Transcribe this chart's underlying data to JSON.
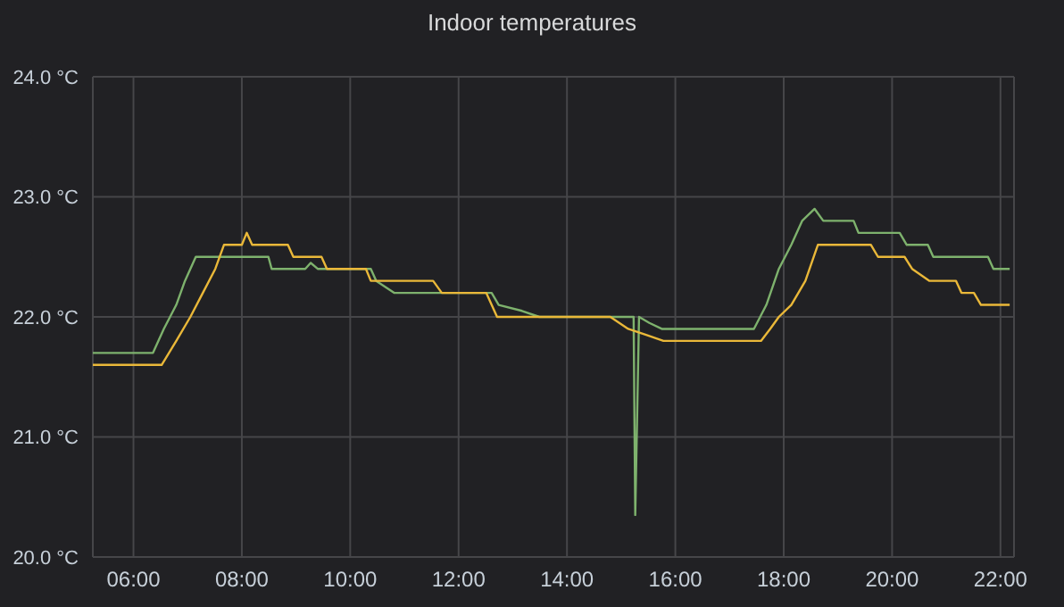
{
  "chart_data": {
    "type": "line",
    "title": "Indoor temperatures",
    "grid": true,
    "legend": false,
    "xlim": [
      5.25,
      22.25
    ],
    "xticks": [
      {
        "value": 6,
        "label": "06:00"
      },
      {
        "value": 8,
        "label": "08:00"
      },
      {
        "value": 10,
        "label": "10:00"
      },
      {
        "value": 12,
        "label": "12:00"
      },
      {
        "value": 14,
        "label": "14:00"
      },
      {
        "value": 16,
        "label": "16:00"
      },
      {
        "value": 18,
        "label": "18:00"
      },
      {
        "value": 20,
        "label": "20:00"
      },
      {
        "value": 22,
        "label": "22:00"
      }
    ],
    "ylim": [
      20,
      24
    ],
    "yticks": [
      {
        "value": 20,
        "label": "20.0 °C"
      },
      {
        "value": 21,
        "label": "21.0 °C"
      },
      {
        "value": 22,
        "label": "22.0 °C"
      },
      {
        "value": 23,
        "label": "23.0 °C"
      },
      {
        "value": 24,
        "label": "24.0 °C"
      }
    ],
    "series": [
      {
        "color": "#7eb26d",
        "x": [
          5.25,
          6.36,
          6.56,
          6.79,
          6.95,
          7.15,
          8.49,
          8.55,
          9.17,
          9.27,
          9.4,
          10.38,
          10.48,
          10.81,
          12.61,
          12.74,
          13.17,
          13.49,
          15.23,
          15.26,
          15.33,
          15.52,
          15.75,
          17.45,
          17.68,
          17.91,
          18.14,
          18.34,
          18.57,
          18.73,
          19.29,
          19.38,
          20.14,
          20.27,
          20.66,
          20.76,
          21.77,
          21.87,
          22.17
        ],
        "values": [
          21.7,
          21.7,
          21.9,
          22.1,
          22.3,
          22.5,
          22.5,
          22.4,
          22.4,
          22.45,
          22.4,
          22.4,
          22.3,
          22.2,
          22.2,
          22.1,
          22.05,
          22.0,
          22.0,
          20.35,
          22.0,
          21.95,
          21.9,
          21.9,
          22.1,
          22.4,
          22.6,
          22.8,
          22.9,
          22.8,
          22.8,
          22.7,
          22.7,
          22.6,
          22.6,
          22.5,
          22.5,
          22.4,
          22.4
        ]
      },
      {
        "color": "#eab839",
        "x": [
          5.25,
          6.52,
          6.79,
          7.05,
          7.28,
          7.51,
          7.67,
          8.0,
          8.09,
          8.19,
          8.85,
          8.95,
          9.47,
          9.57,
          10.29,
          10.38,
          11.53,
          11.69,
          12.51,
          12.71,
          14.8,
          15.13,
          15.46,
          15.78,
          17.58,
          17.75,
          17.91,
          18.14,
          18.4,
          18.63,
          19.61,
          19.74,
          20.23,
          20.37,
          20.69,
          21.18,
          21.28,
          21.51,
          21.64,
          22.17
        ],
        "values": [
          21.6,
          21.6,
          21.8,
          22.0,
          22.2,
          22.4,
          22.6,
          22.6,
          22.7,
          22.6,
          22.6,
          22.5,
          22.5,
          22.4,
          22.4,
          22.3,
          22.3,
          22.2,
          22.2,
          22.0,
          22.0,
          21.9,
          21.85,
          21.8,
          21.8,
          21.9,
          22.0,
          22.1,
          22.3,
          22.6,
          22.6,
          22.5,
          22.5,
          22.4,
          22.3,
          22.3,
          22.2,
          22.2,
          22.1,
          22.1
        ]
      }
    ]
  }
}
